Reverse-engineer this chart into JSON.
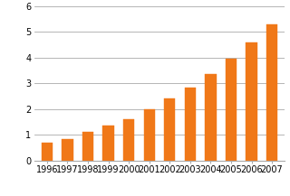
{
  "years": [
    "1996",
    "1997",
    "1998",
    "1999",
    "2000",
    "2001",
    "2002",
    "2003",
    "2004",
    "2005",
    "2006",
    "2007"
  ],
  "values": [
    0.7,
    0.83,
    1.12,
    1.37,
    1.62,
    2.0,
    2.4,
    2.83,
    3.37,
    3.95,
    4.6,
    5.28
  ],
  "bar_color": "#f07818",
  "bar_edge_color": "#f07818",
  "ylim": [
    0,
    6
  ],
  "yticks": [
    0,
    1,
    2,
    3,
    4,
    5,
    6
  ],
  "grid_color": "#aaaaaa",
  "background_color": "#ffffff",
  "tick_fontsize": 7,
  "bar_width": 0.55
}
